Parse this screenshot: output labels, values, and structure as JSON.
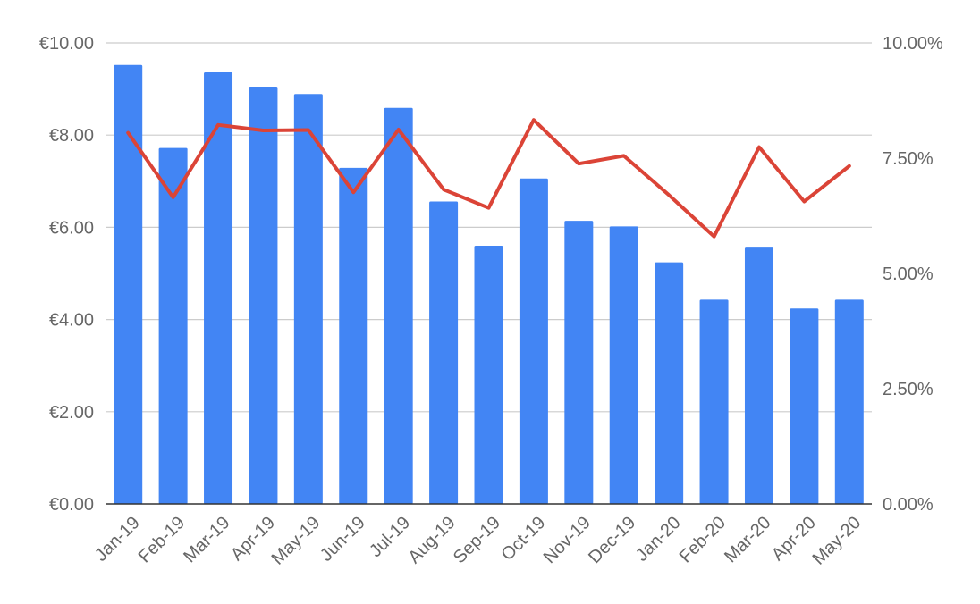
{
  "chart_data": {
    "type": "bar",
    "categories": [
      "Jan-19",
      "Feb-19",
      "Mar-19",
      "Apr-19",
      "May-19",
      "Jun-19",
      "Jul-19",
      "Aug-19",
      "Sep-19",
      "Oct-19",
      "Nov-19",
      "Dec-19",
      "Jan-20",
      "Feb-20",
      "Mar-20",
      "Apr-20",
      "May-20"
    ],
    "series": [
      {
        "type": "bar",
        "axis": "left",
        "color": "#4285f4",
        "values": [
          9.52,
          7.72,
          9.36,
          9.05,
          8.89,
          7.29,
          8.59,
          6.56,
          5.6,
          7.06,
          6.14,
          6.02,
          5.24,
          4.43,
          5.56,
          4.24,
          4.43
        ]
      },
      {
        "type": "line",
        "axis": "right",
        "color": "#db4437",
        "values": [
          8.05,
          6.65,
          8.22,
          8.1,
          8.11,
          6.76,
          8.12,
          6.82,
          6.42,
          8.33,
          7.38,
          7.55,
          6.7,
          5.8,
          7.74,
          6.56,
          7.33
        ]
      }
    ],
    "y_left": {
      "min": 0,
      "max": 10,
      "ticks": [
        "€0.00",
        "€2.00",
        "€4.00",
        "€6.00",
        "€8.00",
        "€10.00"
      ]
    },
    "y_right": {
      "min": 0,
      "max": 10,
      "ticks": [
        "0.00%",
        "2.50%",
        "5.00%",
        "7.50%",
        "10.00%"
      ]
    },
    "grid": true,
    "title": "",
    "xlabel": "",
    "ylabel": ""
  }
}
